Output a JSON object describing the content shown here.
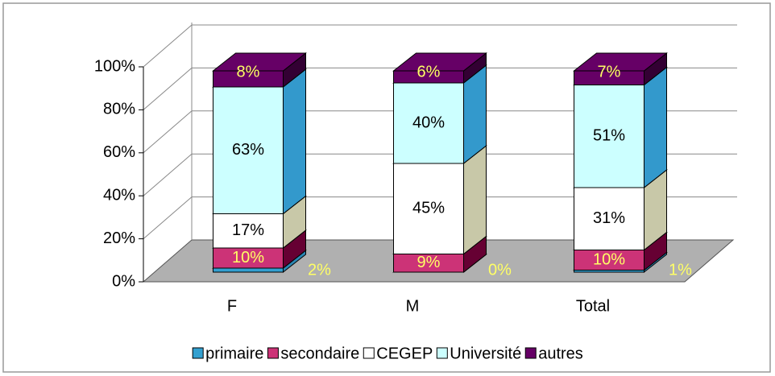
{
  "chart_data": {
    "type": "bar3d_stacked",
    "categories": [
      "F",
      "M",
      "Total"
    ],
    "series": [
      {
        "name": "primaire",
        "color": "#33a0d0",
        "side_color": "#2a86b3",
        "label_color": "#ffff66",
        "values": [
          2,
          0,
          1
        ],
        "value_labels": [
          "2%",
          "0%",
          "1%"
        ]
      },
      {
        "name": "secondaire",
        "color": "#cc3377",
        "side_color": "#660033",
        "label_color": "#ffff66",
        "values": [
          10,
          9,
          10
        ],
        "value_labels": [
          "10%",
          "9%",
          "10%"
        ]
      },
      {
        "name": "CEGEP",
        "color": "#ffffff",
        "side_color": "#c8c8a8",
        "label_color": "#000000",
        "values": [
          17,
          45,
          31
        ],
        "value_labels": [
          "17%",
          "45%",
          "31%"
        ]
      },
      {
        "name": "Université",
        "color": "#ccffff",
        "side_color": "#3399cc",
        "label_color": "#000000",
        "values": [
          63,
          40,
          51
        ],
        "value_labels": [
          "63%",
          "40%",
          "51%"
        ]
      },
      {
        "name": "autres",
        "color": "#660066",
        "side_color": "#330033",
        "label_color": "#ffff66",
        "values": [
          8,
          6,
          7
        ],
        "value_labels": [
          "8%",
          "6%",
          "7%"
        ]
      }
    ],
    "ylim": [
      0,
      100
    ],
    "yticks": [
      {
        "value": 0,
        "label": "0%"
      },
      {
        "value": 20,
        "label": "20%"
      },
      {
        "value": 40,
        "label": "40%"
      },
      {
        "value": 60,
        "label": "60%"
      },
      {
        "value": 80,
        "label": "80%"
      },
      {
        "value": 100,
        "label": "100%"
      }
    ],
    "grid": true,
    "legend": "bottom"
  }
}
